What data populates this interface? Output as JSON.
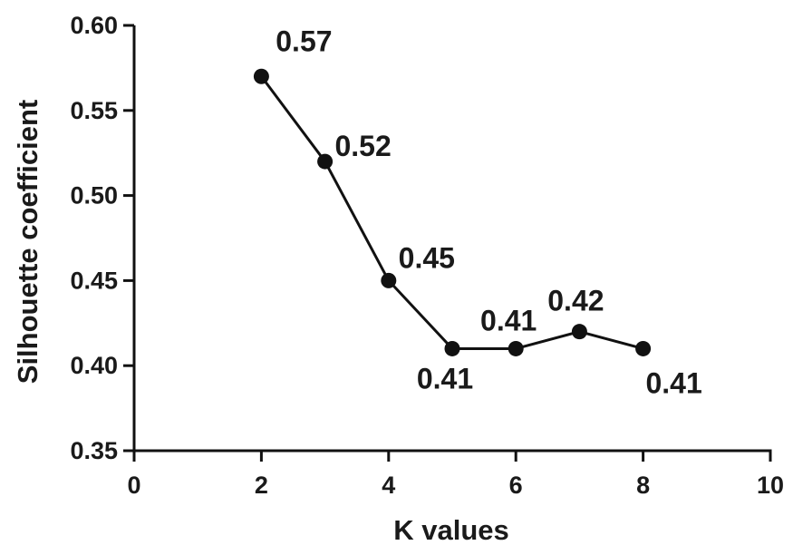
{
  "chart_data": {
    "type": "line",
    "title": "",
    "xlabel": "K values",
    "ylabel": "Silhouette coefficient",
    "xlim": [
      0,
      10
    ],
    "ylim": [
      0.35,
      0.6
    ],
    "x_ticks": [
      0,
      2,
      4,
      6,
      8,
      10
    ],
    "x_tick_labels": [
      "0",
      "2",
      "4",
      "6",
      "8",
      "10"
    ],
    "y_ticks": [
      0.35,
      0.4,
      0.45,
      0.5,
      0.55,
      0.6
    ],
    "y_tick_labels": [
      "0.35",
      "0.40",
      "0.45",
      "0.50",
      "0.55",
      "0.60"
    ],
    "grid": false,
    "legend": "none",
    "series": [
      {
        "x": [
          2,
          3,
          4,
          5,
          6,
          7,
          8
        ],
        "values": [
          0.57,
          0.52,
          0.45,
          0.41,
          0.41,
          0.42,
          0.41
        ],
        "data_labels": [
          "0.57",
          "0.52",
          "0.45",
          "0.41",
          "0.41",
          "0.42",
          "0.41"
        ],
        "color": "#111111"
      }
    ]
  }
}
